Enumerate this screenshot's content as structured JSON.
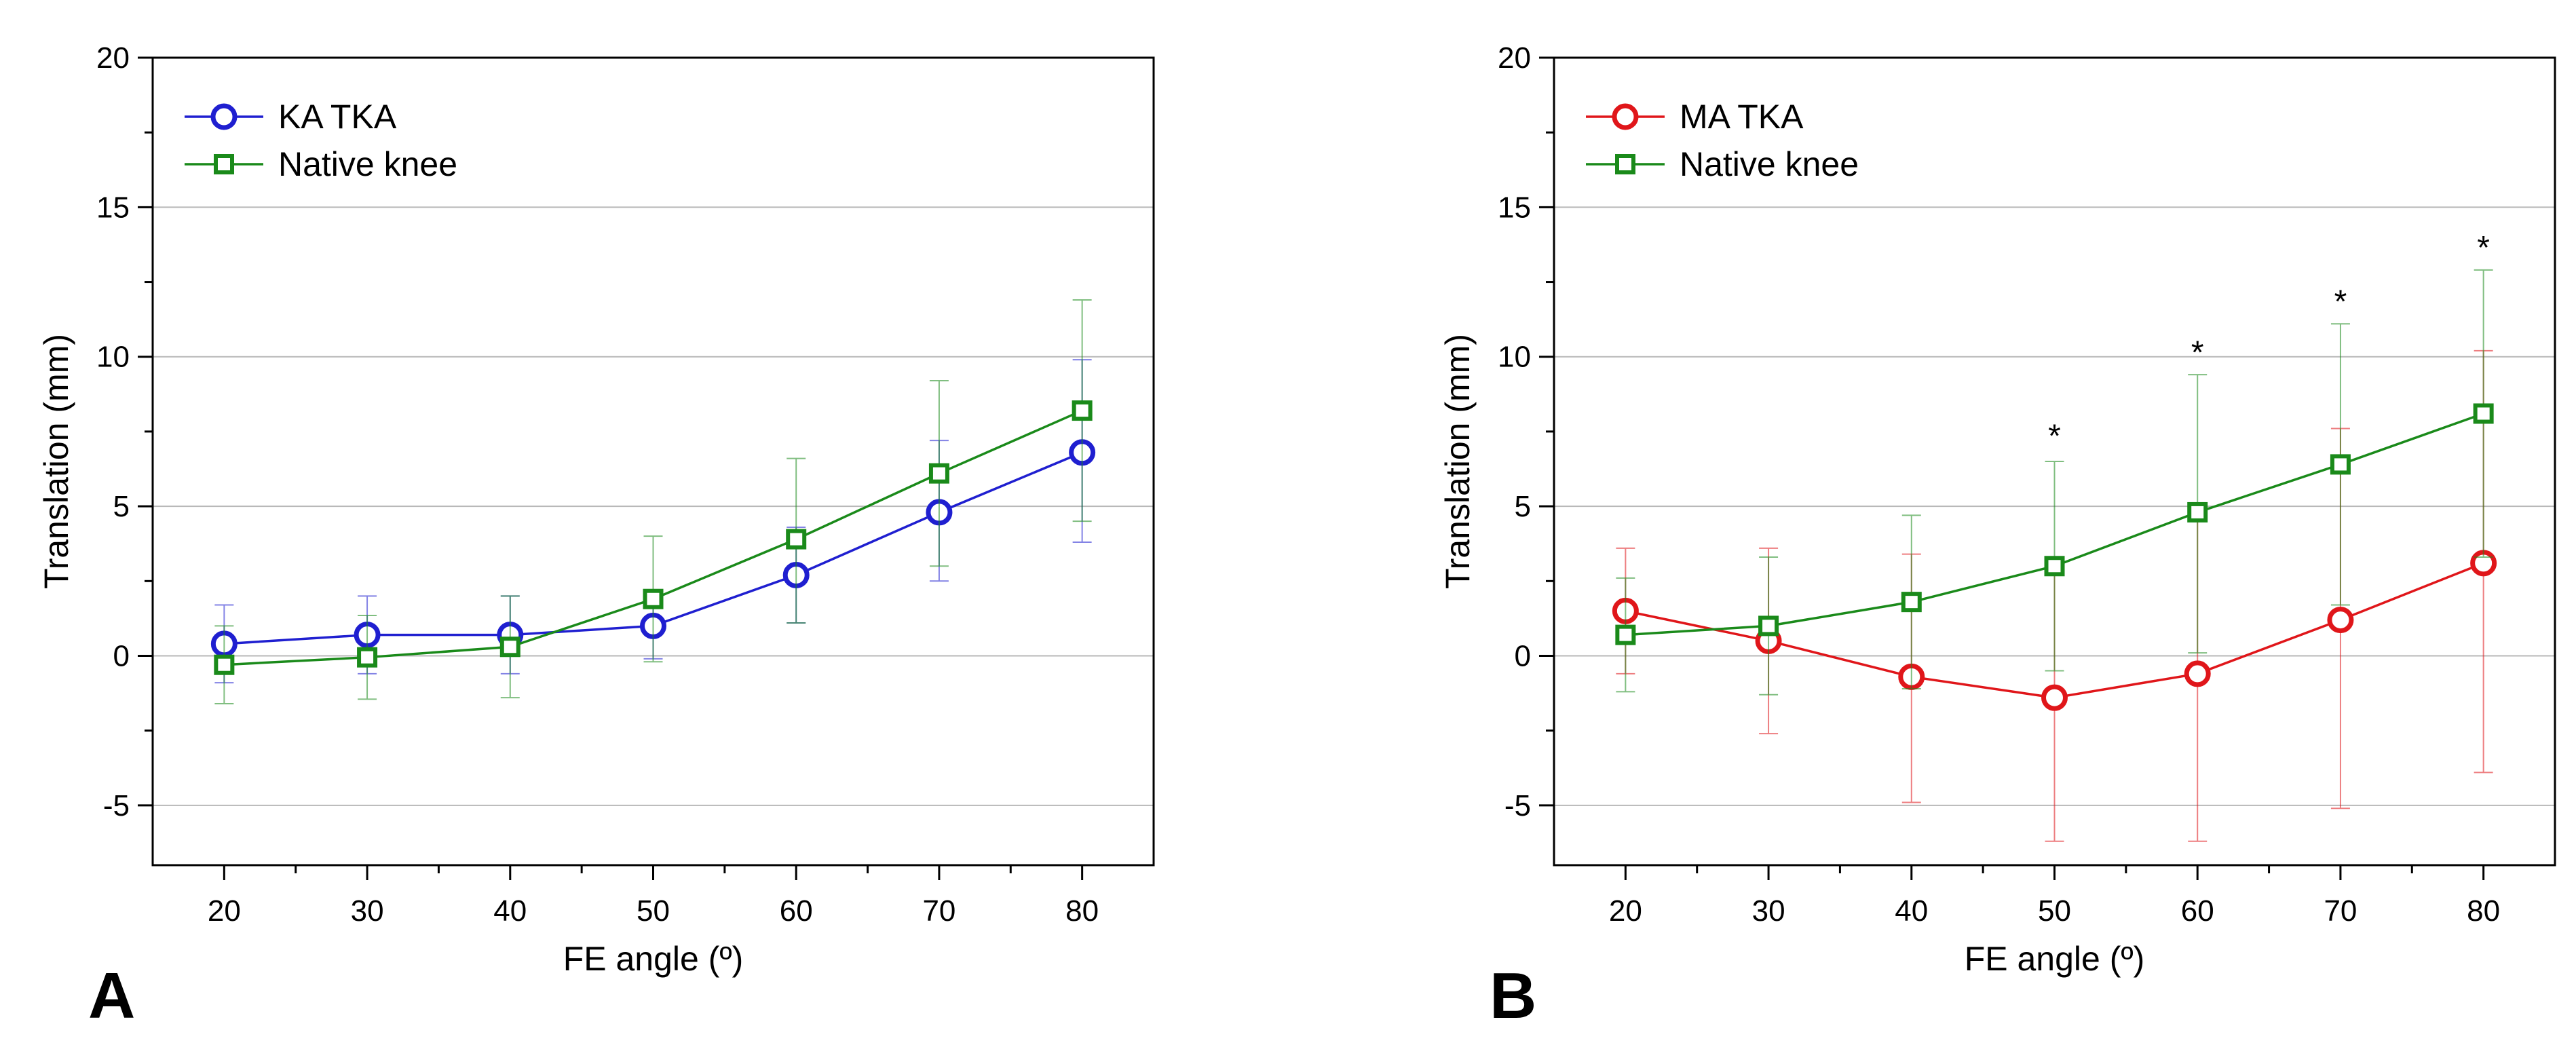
{
  "figure_labels": {
    "panel_a": "A",
    "panel_b": "B"
  },
  "colors": {
    "ka": "#1f1fd0",
    "ma": "#e0161a",
    "native": "#1a8a1a",
    "grid": "#b8b8b8",
    "axis": "#000000"
  },
  "chart_data": [
    {
      "type": "line",
      "panel": "A",
      "xlabel": "FE angle (º)",
      "ylabel": "Translation (mm)",
      "xlim": [
        15,
        85
      ],
      "ylim": [
        -7,
        20
      ],
      "xticks": [
        20,
        30,
        40,
        50,
        60,
        70,
        80
      ],
      "yticks": [
        -5,
        0,
        5,
        10,
        15,
        20
      ],
      "minor_xticks": [
        25,
        35,
        45,
        55,
        65,
        75
      ],
      "minor_yticks": [
        -2.5,
        2.5,
        7.5,
        12.5,
        17.5
      ],
      "grid": "horizontal",
      "legend_position": "top-left",
      "x": [
        20,
        30,
        40,
        50,
        60,
        70,
        80
      ],
      "series": [
        {
          "name": "KA TKA",
          "color": "#1f1fd0",
          "marker": "circle",
          "values": [
            0.4,
            0.7,
            0.7,
            1.0,
            2.7,
            4.8,
            6.8
          ],
          "err_up": [
            1.3,
            1.3,
            1.3,
            1.1,
            1.6,
            2.4,
            3.1
          ],
          "err_down": [
            1.3,
            1.3,
            1.3,
            1.1,
            1.6,
            2.3,
            3.0
          ]
        },
        {
          "name": "Native knee",
          "color": "#1a8a1a",
          "marker": "square",
          "values": [
            -0.3,
            -0.05,
            0.3,
            1.9,
            3.9,
            6.1,
            8.2
          ],
          "err_up": [
            1.3,
            1.4,
            1.7,
            2.1,
            2.7,
            3.1,
            3.7
          ],
          "err_down": [
            1.3,
            1.4,
            1.7,
            2.1,
            2.8,
            3.1,
            3.7
          ]
        }
      ],
      "annotations": []
    },
    {
      "type": "line",
      "panel": "B",
      "xlabel": "FE angle (º)",
      "ylabel": "Translation (mm)",
      "xlim": [
        15,
        85
      ],
      "ylim": [
        -7,
        20
      ],
      "xticks": [
        20,
        30,
        40,
        50,
        60,
        70,
        80
      ],
      "yticks": [
        -5,
        0,
        5,
        10,
        15,
        20
      ],
      "minor_xticks": [
        25,
        35,
        45,
        55,
        65,
        75
      ],
      "minor_yticks": [
        -2.5,
        2.5,
        7.5,
        12.5,
        17.5
      ],
      "grid": "horizontal",
      "legend_position": "top-left",
      "x": [
        20,
        30,
        40,
        50,
        60,
        70,
        80
      ],
      "series": [
        {
          "name": "MA TKA",
          "color": "#e0161a",
          "marker": "circle",
          "values": [
            1.5,
            0.5,
            -0.7,
            -1.4,
            -0.6,
            1.2,
            3.1
          ],
          "err_up": [
            2.1,
            3.1,
            4.1,
            4.7,
            5.6,
            6.4,
            7.1
          ],
          "err_down": [
            2.1,
            3.1,
            4.2,
            4.8,
            5.6,
            6.3,
            7.0
          ]
        },
        {
          "name": "Native knee",
          "color": "#1a8a1a",
          "marker": "square",
          "values": [
            0.7,
            1.0,
            1.8,
            3.0,
            4.8,
            6.4,
            8.1
          ],
          "err_up": [
            1.9,
            2.3,
            2.9,
            3.5,
            4.6,
            4.7,
            4.8
          ],
          "err_down": [
            1.9,
            2.3,
            2.9,
            3.5,
            4.7,
            4.7,
            4.8
          ]
        }
      ],
      "annotations": [
        {
          "text": "*",
          "x": 50,
          "y": 7.3
        },
        {
          "text": "*",
          "x": 60,
          "y": 10.1
        },
        {
          "text": "*",
          "x": 70,
          "y": 11.8
        },
        {
          "text": "*",
          "x": 80,
          "y": 13.6
        }
      ]
    }
  ]
}
